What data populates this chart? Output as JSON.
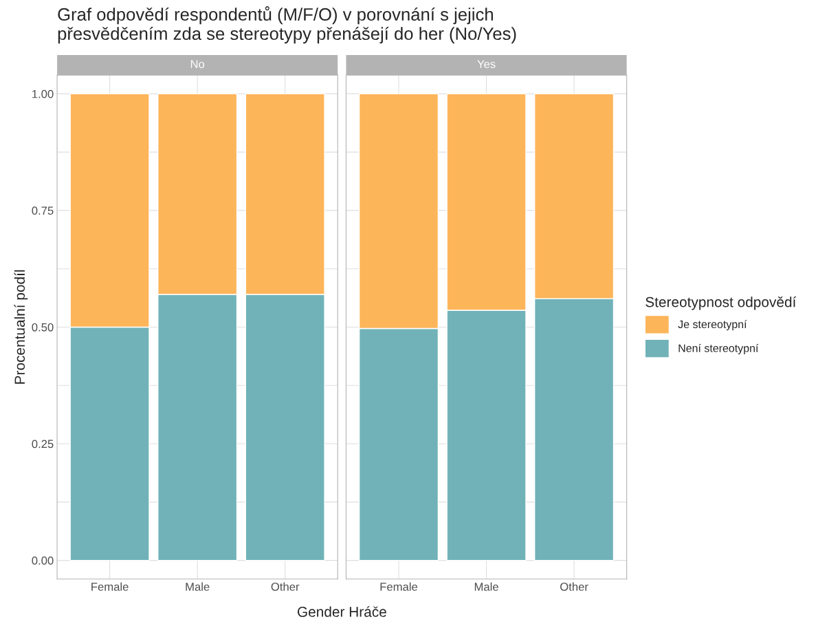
{
  "chart_data": [
    {
      "type": "bar",
      "title": "Graf odpovědí respondentů (M/F/O) v porovnání s jejich\npřesvědčením zda se stereotypy přenášejí do her (No/Yes)",
      "subtitle": "No",
      "xlabel": "Gender Hráče",
      "ylabel": "Procentualní podíl",
      "categories": [
        "Female",
        "Male",
        "Other"
      ],
      "stacked": true,
      "grid": true,
      "ylim": [
        -0.04,
        1.04
      ],
      "yticks": [
        {
          "value": 0,
          "label": "0.00"
        },
        {
          "value": 0.125,
          "label": null
        },
        {
          "value": 0.25,
          "label": "0.25"
        },
        {
          "value": 0.375,
          "label": null
        },
        {
          "value": 0.5,
          "label": "0.50"
        },
        {
          "value": 0.625,
          "label": null
        },
        {
          "value": 0.75,
          "label": "0.75"
        },
        {
          "value": 0.875,
          "label": null
        },
        {
          "value": 1,
          "label": "1.00"
        }
      ],
      "series": [
        {
          "color": "#70b2b8",
          "values": [
            0.5,
            0.57,
            0.57
          ]
        },
        {
          "color": "#fdb55a",
          "values": [
            0.5,
            0.43,
            0.43
          ]
        }
      ]
    },
    {
      "type": "bar",
      "subtitle": "Yes",
      "categories": [
        "Female",
        "Male",
        "Other"
      ],
      "stacked": true,
      "grid": true,
      "legend": "right",
      "legend_title": "Stereotypnost odpovědí",
      "tick_labels": "x",
      "ylim": [
        -0.04,
        1.04
      ],
      "yticks": [
        0,
        0.125,
        0.25,
        0.375,
        0.5,
        0.625,
        0.75,
        0.875,
        1
      ],
      "series": [
        {
          "name": "Není stereotypní",
          "color": "#70b2b8",
          "values": [
            0.497,
            0.536,
            0.561
          ]
        },
        {
          "name": "Je stereotypní",
          "color": "#fdb55a",
          "values": [
            0.503,
            0.464,
            0.439
          ]
        }
      ]
    }
  ]
}
